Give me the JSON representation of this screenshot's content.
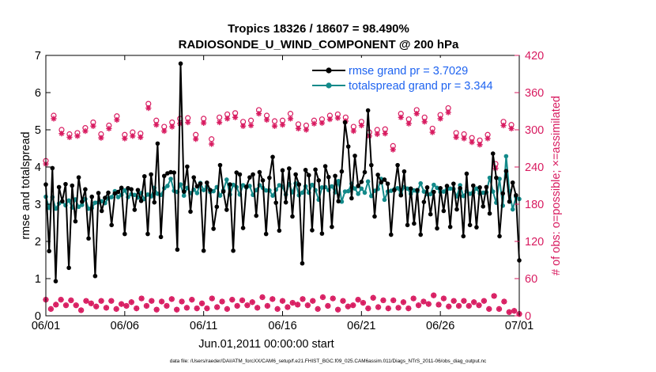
{
  "colors": {
    "rmse": "#000000",
    "spread": "#138A8A",
    "obs": "#D81B60",
    "legend_text": "#1E63F0"
  },
  "chart_data": {
    "type": "line",
    "title": "Tropics 18326 / 18607 = 98.490%",
    "subtitle": "RADIOSONDE_U_WIND_COMPONENT @ 200 hPa",
    "xlabel": "Jun.01,2011 00:00:00 start",
    "ylabel": "rmse and totalspread",
    "ylabel_right": "# of obs: o=possible; ×=assimilated",
    "footnote": "data file: /Users/raeder/DAI/ATM_forcXX/CAM6_setup/f.e21.FHIST_BGC.f09_025.CAM6assim.011/Diags_NTrS_2011-06/obs_diag_output.nc",
    "xlim": [
      0,
      30
    ],
    "ylim": [
      0,
      7
    ],
    "ylim_right": [
      0,
      420
    ],
    "x_tick_labels": [
      "06/01",
      "06/06",
      "06/11",
      "06/16",
      "06/21",
      "06/26",
      "07/01"
    ],
    "y_ticks": [
      "0",
      "1",
      "2",
      "3",
      "4",
      "5",
      "6",
      "7"
    ],
    "y_ticks_right": [
      "0",
      "60",
      "120",
      "180",
      "240",
      "300",
      "360",
      "420"
    ],
    "legend": [
      {
        "label": "rmse grand pr = 3.7029"
      },
      {
        "label": "totalspread grand pr = 3.344"
      }
    ],
    "series": [
      {
        "name": "rmse",
        "values": [
          3.53,
          1.74,
          3.97,
          0.93,
          3.46,
          3.08,
          3.54,
          1.29,
          3.5,
          2.54,
          3.72,
          3.07,
          3.4,
          2.08,
          3.2,
          1.07,
          3.3,
          2.82,
          3.17,
          3.31,
          2.44,
          3.29,
          3.33,
          3.44,
          2.2,
          3.43,
          3.4,
          2.85,
          3.38,
          3.09,
          3.75,
          2.2,
          3.8,
          3.05,
          4.63,
          2.12,
          3.76,
          3.83,
          3.86,
          3.85,
          1.78,
          6.78,
          3.34,
          4.01,
          2.8,
          3.72,
          3.48,
          3.55,
          1.75,
          3.58,
          3.38,
          2.34,
          2.93,
          4.05,
          3.34,
          2.85,
          3.53,
          1.75,
          3.85,
          3.8,
          2.36,
          3.47,
          3.72,
          3.8,
          2.69,
          3.86,
          3.64,
          2.2,
          3.71,
          4.27,
          3.04,
          2.29,
          3.91,
          3.05,
          3.96,
          2.67,
          3.8,
          3.53,
          1.41,
          3.92,
          3.78,
          2.3,
          3.93,
          3.64,
          2.21,
          4.02,
          3.73,
          2.39,
          3.76,
          3.08,
          3.88,
          5.2,
          4.55,
          3.16,
          4.3,
          3.49,
          3.6,
          3.86,
          5.52,
          4.05,
          2.67,
          3.79,
          3.59,
          3.66,
          3.55,
          2.18,
          3.38,
          4.05,
          3.24,
          3.88,
          2.44,
          3.42,
          2.48,
          3.38,
          2.18,
          3.06,
          3.45,
          2.73,
          3.33,
          2.35,
          3.43,
          2.82,
          3.49,
          2.39,
          3.55,
          2.86,
          3.43,
          2.14,
          3.82,
          2.44,
          3.5,
          2.38,
          3.45,
          2.94,
          3.46,
          2.75,
          4.36,
          3.71,
          2.14,
          3.29,
          3.89,
          3.07,
          3.58,
          3.24,
          1.49
        ]
      },
      {
        "name": "totalspread",
        "values": [
          3.2,
          2.9,
          3.19,
          2.88,
          3.02,
          3.07,
          2.97,
          3.1,
          2.91,
          3.13,
          2.93,
          2.98,
          3.14,
          2.88,
          2.9,
          3.04,
          3.05,
          3.08,
          3.03,
          3.16,
          3.19,
          3.35,
          3.19,
          3.25,
          3.37,
          3.19,
          3.27,
          3.25,
          3.18,
          3.3,
          3.14,
          3.26,
          3.21,
          3.44,
          3.28,
          3.25,
          3.43,
          3.49,
          3.68,
          3.36,
          3.33,
          3.53,
          3.23,
          3.44,
          3.3,
          3.39,
          3.3,
          3.57,
          3.38,
          3.48,
          3.33,
          3.35,
          3.46,
          3.23,
          3.37,
          3.66,
          3.26,
          3.52,
          3.46,
          3.26,
          3.51,
          3.45,
          3.49,
          3.25,
          3.38,
          3.51,
          3.44,
          3.37,
          3.37,
          3.23,
          3.39,
          3.51,
          3.47,
          3.26,
          3.54,
          3.32,
          3.56,
          3.24,
          3.31,
          3.48,
          3.31,
          3.52,
          3.38,
          3.12,
          3.45,
          3.46,
          3.38,
          3.48,
          3.32,
          3.62,
          3.07,
          3.34,
          3.35,
          3.55,
          3.42,
          3.28,
          3.42,
          3.31,
          3.61,
          3.22,
          3.36,
          3.41,
          3.68,
          3.12,
          3.34,
          3.36,
          3.4,
          3.43,
          3.29,
          3.46,
          3.42,
          3.28,
          3.37,
          3.34,
          3.56,
          3.34,
          3.27,
          3.27,
          3.52,
          3.44,
          3.33,
          3.34,
          3.4,
          3.42,
          3.41,
          3.21,
          3.51,
          3.22,
          3.35,
          3.28,
          3.32,
          3.42,
          3.29,
          3.31,
          3.32,
          3.71,
          3.34,
          3.04,
          3.68,
          2.96,
          4.29,
          3.35,
          2.86,
          3.2,
          3.14
        ]
      },
      {
        "name": "obs possible 12Z",
        "values": [
          250,
          323,
          300,
          293,
          295,
          303,
          312,
          293,
          307,
          322,
          292,
          296,
          294,
          342,
          315,
          305,
          312,
          318,
          319,
          292,
          318,
          285,
          320,
          325,
          327,
          313,
          315,
          332,
          323,
          314,
          315,
          326,
          309,
          307,
          315,
          317,
          323,
          325,
          320,
          305,
          313,
          296,
          300,
          301,
          274,
          326,
          317,
          332,
          320,
          302,
          324,
          335,
          295,
          293,
          287,
          283,
          292,
          245,
          313,
          308
        ]
      },
      {
        "name": "obs assimilated 12Z",
        "values": [
          245,
          318,
          294,
          288,
          290,
          298,
          306,
          287,
          302,
          316,
          286,
          290,
          288,
          335,
          308,
          298,
          305,
          310,
          312,
          285,
          311,
          277,
          312,
          318,
          320,
          306,
          307,
          326,
          316,
          306,
          308,
          318,
          302,
          300,
          310,
          311,
          317,
          319,
          314,
          298,
          307,
          290,
          293,
          294,
          268,
          320,
          310,
          326,
          313,
          296,
          318,
          328,
          288,
          286,
          280,
          276,
          286,
          238,
          307,
          302
        ]
      },
      {
        "name": "obs possible 00Z",
        "values": [
          26,
          11,
          18,
          26,
          17,
          25,
          17,
          9,
          24,
          20,
          15,
          24,
          13,
          24,
          11,
          19,
          16,
          22,
          12,
          28,
          16,
          24,
          10,
          23,
          16,
          27,
          10,
          23,
          13,
          26,
          12,
          20,
          12,
          28,
          14,
          23,
          11,
          26,
          16,
          25,
          17,
          22,
          13,
          30,
          16,
          27,
          11,
          24,
          14,
          21,
          18,
          27,
          17,
          24,
          11,
          30,
          16,
          28,
          10,
          24,
          15,
          17,
          26,
          21,
          12,
          29,
          14,
          25,
          12,
          25,
          13,
          22,
          12,
          28,
          17,
          23,
          19,
          33,
          18,
          28,
          15,
          24,
          16,
          24,
          16,
          22,
          17,
          24,
          11,
          32,
          11,
          23,
          6,
          8,
          3
        ]
      },
      {
        "name": "obs assimilated 00Z",
        "values": [
          26,
          11,
          18,
          26,
          17,
          25,
          17,
          9,
          24,
          20,
          15,
          24,
          13,
          24,
          11,
          19,
          16,
          22,
          12,
          28,
          16,
          24,
          10,
          23,
          16,
          27,
          10,
          23,
          13,
          26,
          12,
          20,
          12,
          28,
          14,
          23,
          11,
          26,
          16,
          25,
          17,
          22,
          13,
          30,
          16,
          27,
          11,
          24,
          14,
          21,
          18,
          27,
          17,
          24,
          11,
          30,
          16,
          28,
          10,
          24,
          15,
          17,
          26,
          21,
          12,
          29,
          14,
          25,
          12,
          25,
          13,
          22,
          12,
          28,
          17,
          23,
          19,
          33,
          18,
          28,
          15,
          24,
          16,
          24,
          16,
          22,
          17,
          24,
          11,
          32,
          11,
          23,
          6,
          8,
          3
        ]
      }
    ]
  }
}
